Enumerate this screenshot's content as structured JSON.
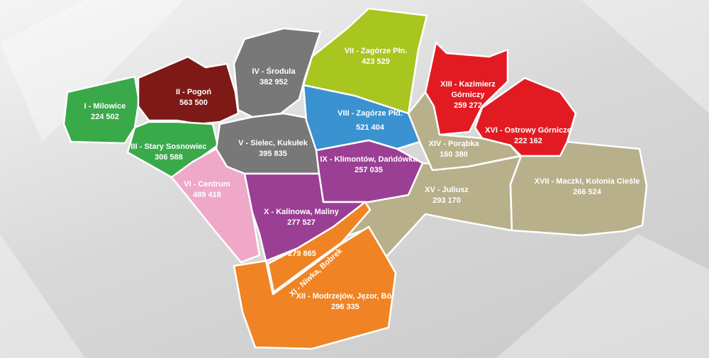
{
  "districts": [
    {
      "name": "I - Milowice",
      "population": "224 502"
    },
    {
      "name": "II - Pogoń",
      "population": "563 500"
    },
    {
      "name": "III - Stary Sosnowiec",
      "population": "306 588"
    },
    {
      "name": "IV - Środula",
      "population": "382 952"
    },
    {
      "name": "V - Sielec, Kukułek",
      "population": "395 835"
    },
    {
      "name": "VI - Centrum",
      "population": "489 418"
    },
    {
      "name": "VII - Zagórze Płn.",
      "population": "423 529"
    },
    {
      "name": "VIII - Zagórze Płd.",
      "population": "521 404"
    },
    {
      "name": "IX - Klimontów, Dańdówka",
      "population": "257 035"
    },
    {
      "name": "X - Kalinowa, Maliny",
      "population": "277 527"
    },
    {
      "name": "XI - Niwka, Bobrek",
      "population": "279 865"
    },
    {
      "name": "XII - Modrzejów, Jęzor, Bór",
      "population": "296 335"
    },
    {
      "name": "XIII - Kazimierz Górniczy",
      "population": "259 272"
    },
    {
      "name": "XIV - Porąbka",
      "population": "160 380"
    },
    {
      "name": "XV - Juliusz",
      "population": "293 170"
    },
    {
      "name": "XVI - Ostrowy Górnicze",
      "population": "222 162"
    },
    {
      "name": "XVII - Maczki, Kolonia Cieśle",
      "population": "266 524"
    }
  ]
}
